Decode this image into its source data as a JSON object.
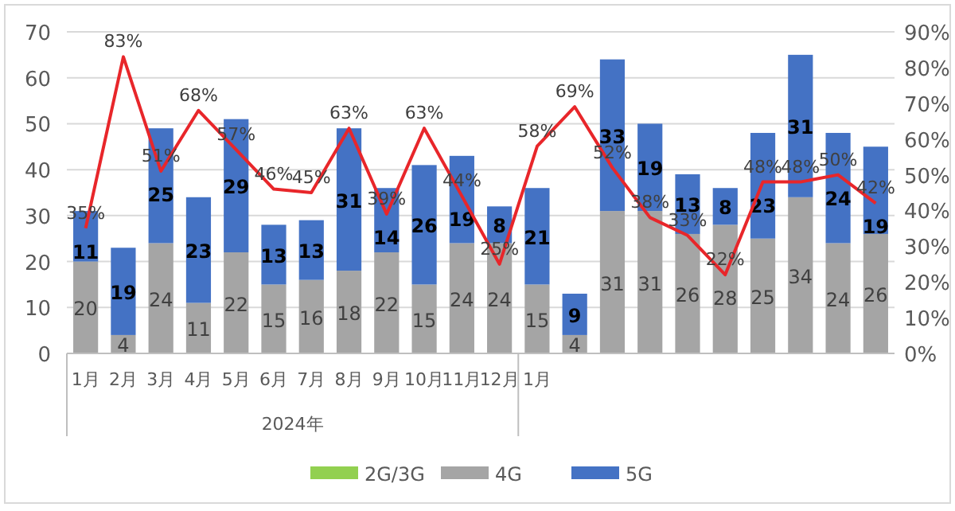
{
  "chart_data": {
    "type": "bar",
    "stacked": true,
    "data_labels": true,
    "grid": "y",
    "legend": "bottom",
    "categories": [
      "1月",
      "2月",
      "3月",
      "4月",
      "5月",
      "6月",
      "7月",
      "8月",
      "9月",
      "10月",
      "11月",
      "12月",
      "1月",
      null,
      null,
      null,
      null,
      null,
      null,
      null,
      null,
      null
    ],
    "ylim": [
      0,
      70
    ],
    "yticks": [
      0,
      10,
      20,
      30,
      40,
      50,
      60,
      70
    ],
    "y2lim": [
      0,
      90
    ],
    "y2ticks": [
      {
        "value": 0,
        "label": "0%"
      },
      {
        "value": 10,
        "label": "10%"
      },
      {
        "value": 20,
        "label": "20%"
      },
      {
        "value": 30,
        "label": "30%"
      },
      {
        "value": 40,
        "label": "40%"
      },
      {
        "value": 50,
        "label": "50%"
      },
      {
        "value": 60,
        "label": "60%"
      },
      {
        "value": 70,
        "label": "70%"
      },
      {
        "value": 80,
        "label": "80%"
      },
      {
        "value": 90,
        "label": "90%"
      }
    ],
    "series": [
      {
        "name": "2G/3G",
        "color": "#92d050",
        "values": [
          null,
          null,
          null,
          null,
          null,
          null,
          null,
          null,
          null,
          null,
          null,
          null,
          null,
          null,
          null,
          null,
          null,
          null,
          null,
          null,
          null,
          null
        ]
      },
      {
        "name": "4G",
        "color": "#a5a5a5",
        "values": [
          20,
          4,
          24,
          11,
          22,
          15,
          16,
          18,
          22,
          15,
          24,
          24,
          15,
          4,
          31,
          31,
          26,
          28,
          25,
          34,
          24,
          26
        ]
      },
      {
        "name": "5G",
        "color": "#4472c4",
        "values": [
          11,
          19,
          25,
          23,
          29,
          13,
          13,
          31,
          14,
          26,
          19,
          8,
          21,
          9,
          33,
          19,
          13,
          8,
          23,
          31,
          24,
          19
        ]
      },
      {
        "type": "line",
        "axis": "y2",
        "color": "#e8262a",
        "values": [
          35,
          83,
          51,
          68,
          57,
          46,
          45,
          63,
          39,
          63,
          44,
          25,
          58,
          69,
          52,
          38,
          33,
          22,
          48,
          48,
          50,
          42
        ],
        "value_labels": [
          "35%",
          "83%",
          "51%",
          "68%",
          "57%",
          "46%",
          "45%",
          "63%",
          "39%",
          "63%",
          "44%",
          "25%",
          "58%",
          "69%",
          "52%",
          "38%",
          "33%",
          "22%",
          "48%",
          "48%",
          "50%",
          "42%"
        ]
      }
    ],
    "annotations": [
      "2024年"
    ]
  }
}
